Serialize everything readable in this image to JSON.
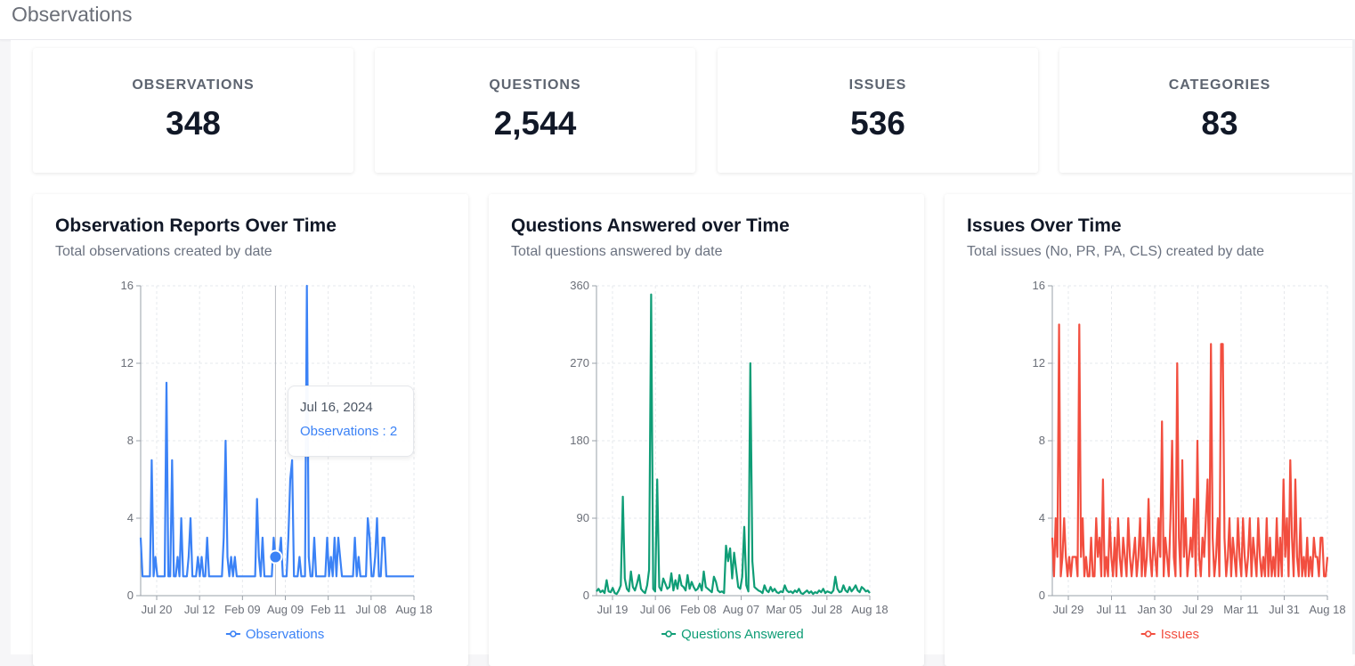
{
  "page": {
    "title": "Observations"
  },
  "kpis": [
    {
      "label": "OBSERVATIONS",
      "value": "348"
    },
    {
      "label": "QUESTIONS",
      "value": "2,544"
    },
    {
      "label": "ISSUES",
      "value": "536"
    },
    {
      "label": "CATEGORIES",
      "value": "83"
    }
  ],
  "colors": {
    "observations": "#3b82f6",
    "questions": "#0f9d76",
    "issues": "#f24e3f"
  },
  "tooltip": {
    "date": "Jul 16, 2024",
    "series": "Observations",
    "value": 2,
    "text": "Observations : 2"
  },
  "chart_data": [
    {
      "type": "line",
      "title": "Observation Reports Over Time",
      "subtitle": "Total observations created by date",
      "x_tick_labels": [
        "Jul 20",
        "Jul 12",
        "Feb 09",
        "Aug 09",
        "Feb 11",
        "Jul 08",
        "Aug 18"
      ],
      "y_ticks": [
        0,
        4,
        8,
        12,
        16
      ],
      "ylim": [
        0,
        16
      ],
      "grid": true,
      "legend": "bottom-center",
      "series": [
        {
          "name": "Observations",
          "color": "#3b82f6",
          "values": [
            3,
            1,
            1,
            1,
            1,
            1,
            7,
            1,
            2,
            1,
            1,
            1,
            1,
            1,
            11,
            1,
            1,
            7,
            1,
            1,
            2,
            1,
            4,
            1,
            1,
            1,
            2,
            4,
            1,
            1,
            1,
            2,
            1,
            2,
            1,
            1,
            3,
            1,
            1,
            1,
            1,
            1,
            1,
            1,
            1,
            3,
            8,
            2,
            1,
            2,
            1,
            2,
            1,
            1,
            1,
            1,
            1,
            1,
            1,
            1,
            1,
            1,
            1,
            5,
            2,
            1,
            3,
            1,
            1,
            1,
            1,
            1,
            3,
            2,
            2,
            2,
            3,
            1,
            1,
            1,
            3,
            6,
            7,
            1,
            1,
            1,
            2,
            1,
            1,
            1,
            16,
            2,
            1,
            1,
            3,
            1,
            1,
            1,
            1,
            1,
            1,
            3,
            1,
            2,
            1,
            3,
            1,
            3,
            2,
            1,
            1,
            1,
            1,
            1,
            1,
            1,
            3,
            1,
            2,
            1,
            1,
            1,
            1,
            4,
            3,
            1,
            1,
            2,
            4,
            1,
            1,
            3,
            3,
            1,
            1,
            1,
            1,
            1,
            1,
            1,
            1,
            1,
            1,
            1,
            1,
            1,
            1,
            1,
            1
          ]
        }
      ]
    },
    {
      "type": "line",
      "title": "Questions Answered over Time",
      "subtitle": "Total questions answered by date",
      "x_tick_labels": [
        "Jul 19",
        "Jul 06",
        "Feb 08",
        "Aug 07",
        "Mar 05",
        "Jul 28",
        "Aug 18"
      ],
      "y_ticks": [
        0,
        90,
        180,
        270,
        360
      ],
      "ylim": [
        0,
        360
      ],
      "grid": true,
      "legend": "bottom-center",
      "series": [
        {
          "name": "Questions Answered",
          "color": "#0f9d76",
          "values": [
            5,
            8,
            4,
            6,
            3,
            18,
            5,
            4,
            9,
            3,
            2,
            6,
            12,
            115,
            20,
            8,
            5,
            28,
            10,
            6,
            14,
            24,
            8,
            5,
            3,
            12,
            30,
            350,
            8,
            5,
            135,
            10,
            6,
            20,
            14,
            8,
            10,
            26,
            6,
            18,
            8,
            24,
            12,
            10,
            6,
            24,
            8,
            16,
            10,
            6,
            8,
            14,
            6,
            28,
            10,
            8,
            6,
            4,
            22,
            16,
            6,
            4,
            5,
            3,
            58,
            40,
            55,
            20,
            50,
            30,
            10,
            8,
            22,
            80,
            12,
            5,
            270,
            40,
            10,
            8,
            6,
            5,
            3,
            12,
            6,
            4,
            10,
            5,
            8,
            4,
            3,
            5,
            4,
            12,
            6,
            4,
            5,
            3,
            6,
            4,
            8,
            3,
            2,
            4,
            6,
            3,
            5,
            2,
            4,
            3,
            6,
            4,
            8,
            3,
            5,
            4,
            3,
            6,
            22,
            8,
            4,
            5,
            12,
            6,
            4,
            10,
            5,
            8,
            12,
            6,
            4,
            10,
            8,
            5,
            6,
            3
          ]
        }
      ]
    },
    {
      "type": "line",
      "title": "Issues Over Time",
      "subtitle": "Total issues (No, PR, PA, CLS) created by date",
      "x_tick_labels": [
        "Jul 29",
        "Jul 11",
        "Jan 30",
        "Jul 29",
        "Mar 11",
        "Jul 31",
        "Aug 18"
      ],
      "y_ticks": [
        0,
        4,
        8,
        12,
        16
      ],
      "ylim": [
        0,
        16
      ],
      "grid": true,
      "legend": "bottom-center",
      "series": [
        {
          "name": "Issues",
          "color": "#f24e3f",
          "values": [
            3,
            1,
            4,
            2,
            14,
            1,
            2,
            4,
            2,
            1,
            2,
            1,
            2,
            2,
            2,
            1,
            14,
            2,
            4,
            1,
            2,
            1,
            1,
            3,
            1,
            1,
            4,
            2,
            3,
            1,
            6,
            1,
            2,
            1,
            4,
            2,
            1,
            3,
            1,
            4,
            2,
            1,
            3,
            2,
            1,
            4,
            2,
            1,
            2,
            3,
            1,
            2,
            4,
            1,
            3,
            1,
            2,
            5,
            2,
            1,
            3,
            2,
            1,
            4,
            2,
            9,
            1,
            3,
            2,
            1,
            4,
            8,
            2,
            1,
            12,
            3,
            1,
            7,
            2,
            4,
            1,
            2,
            3,
            2,
            5,
            1,
            8,
            2,
            1,
            3,
            2,
            4,
            6,
            1,
            13,
            3,
            1,
            2,
            4,
            1,
            13,
            13,
            3,
            1,
            2,
            4,
            1,
            3,
            2,
            1,
            4,
            2,
            1,
            4,
            2,
            1,
            2,
            4,
            1,
            3,
            2,
            1,
            4,
            2,
            1,
            2,
            1,
            4,
            1,
            3,
            1,
            2,
            1,
            4,
            1,
            3,
            1,
            6,
            2,
            4,
            1,
            7,
            3,
            1,
            6,
            2,
            1,
            4,
            1,
            2,
            1,
            3,
            1,
            2,
            1,
            3,
            2,
            2,
            1,
            3,
            3,
            1,
            1,
            2
          ]
        }
      ]
    }
  ]
}
